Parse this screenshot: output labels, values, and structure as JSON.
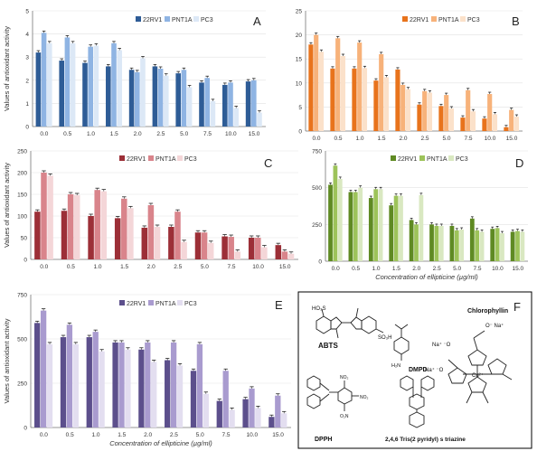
{
  "common": {
    "series_names": [
      "22RV1",
      "PNT1A",
      "PC3"
    ],
    "categories": [
      "0.0",
      "0.5",
      "1.0",
      "1.5",
      "2.0",
      "2.5",
      "5.0",
      "7.5",
      "10.0",
      "15.0"
    ]
  },
  "panel_f": {
    "letter": "F",
    "labels": {
      "abts": "ABTS",
      "chlorophyllin": "Chlorophyllin",
      "dmpd": "DMPD",
      "dpph": "DPPH",
      "tptz": "2,4,6 Tris(2 pyridyl) s triazine",
      "na1": "O⁻ Na⁺",
      "na2": "Na⁺ ⁻O",
      "na3": "Na⁺ ⁻O",
      "cu": "Cu²⁺"
    }
  },
  "chart_data": [
    {
      "id": "A",
      "type": "bar",
      "letter": "A",
      "ylabel": "Values of antioxidant activity",
      "xlabel": "",
      "ylim": [
        0,
        5
      ],
      "yticks": [
        0,
        1,
        2,
        3,
        4,
        5
      ],
      "categories": [
        "0.0",
        "0.5",
        "1.0",
        "1.5",
        "2.0",
        "2.5",
        "5.0",
        "7.5",
        "10.0",
        "15.0"
      ],
      "colors": [
        "#2e5c96",
        "#8fb4e3",
        "#dce8f6"
      ],
      "series": [
        {
          "name": "22RV1",
          "values": [
            3.2,
            2.85,
            2.75,
            2.6,
            2.45,
            2.6,
            2.3,
            1.9,
            1.8,
            1.95
          ]
        },
        {
          "name": "PNT1A",
          "values": [
            4.05,
            3.85,
            3.45,
            3.6,
            2.35,
            2.5,
            2.45,
            2.1,
            1.9,
            2.0
          ]
        },
        {
          "name": "PC3",
          "values": [
            3.6,
            3.6,
            3.5,
            3.3,
            2.95,
            2.2,
            1.7,
            1.1,
            0.8,
            0.6
          ]
        }
      ]
    },
    {
      "id": "B",
      "type": "bar",
      "letter": "B",
      "ylabel": "",
      "xlabel": "",
      "ylim": [
        0,
        25
      ],
      "yticks": [
        0,
        5,
        10,
        15,
        20,
        25
      ],
      "categories": [
        "0.0",
        "0.5",
        "1.0",
        "1.5",
        "2.0",
        "2.5",
        "5.0",
        "7.5",
        "10.0",
        "15.0"
      ],
      "colors": [
        "#e8731c",
        "#f7b27a",
        "#fbe1ca"
      ],
      "series": [
        {
          "name": "22RV1",
          "values": [
            18.0,
            13.0,
            13.0,
            10.5,
            12.8,
            5.5,
            5.2,
            2.8,
            2.6,
            0.8
          ]
        },
        {
          "name": "PNT1A",
          "values": [
            20.0,
            19.3,
            18.4,
            16.0,
            9.6,
            8.3,
            7.5,
            8.5,
            7.7,
            4.4
          ]
        },
        {
          "name": "PC3",
          "values": [
            16.5,
            15.6,
            13.1,
            11.2,
            8.7,
            8.0,
            4.7,
            4.1,
            3.5,
            3.0
          ]
        }
      ]
    },
    {
      "id": "C",
      "type": "bar",
      "letter": "C",
      "ylabel": "Values of antioxidant activity",
      "xlabel": "",
      "ylim": [
        0,
        250
      ],
      "yticks": [
        0,
        50,
        100,
        150,
        200,
        250
      ],
      "categories": [
        "0.0",
        "0.5",
        "1.0",
        "1.5",
        "2.0",
        "2.5",
        "5.0",
        "7.5",
        "10.0",
        "15.0"
      ],
      "colors": [
        "#9c2f37",
        "#d9848b",
        "#f4d6d8"
      ],
      "series": [
        {
          "name": "22RV1",
          "values": [
            110,
            112,
            100,
            95,
            73,
            75,
            62,
            53,
            50,
            33
          ]
        },
        {
          "name": "PNT1A",
          "values": [
            200,
            150,
            160,
            140,
            125,
            110,
            62,
            52,
            50,
            18
          ]
        },
        {
          "name": "PC3",
          "values": [
            193,
            148,
            157,
            118,
            75,
            40,
            38,
            18,
            28,
            13
          ]
        }
      ]
    },
    {
      "id": "D",
      "type": "bar",
      "letter": "D",
      "ylabel": "",
      "xlabel": "Concentration of ellipticine (µg/ml)",
      "ylim": [
        0,
        750
      ],
      "yticks": [
        0,
        250,
        500,
        750
      ],
      "categories": [
        "0.0",
        "0.5",
        "1.0",
        "1.5",
        "2.0",
        "2.5",
        "5.0",
        "7.5",
        "10.0",
        "15.0"
      ],
      "colors": [
        "#5f8a23",
        "#9dc35a",
        "#d9e8c1"
      ],
      "series": [
        {
          "name": "22RV1",
          "values": [
            520,
            470,
            430,
            380,
            280,
            250,
            240,
            290,
            220,
            200
          ]
        },
        {
          "name": "PNT1A",
          "values": [
            650,
            470,
            490,
            445,
            250,
            240,
            210,
            210,
            225,
            205
          ]
        },
        {
          "name": "PC3",
          "values": [
            560,
            500,
            490,
            445,
            450,
            240,
            215,
            200,
            190,
            200
          ]
        }
      ]
    },
    {
      "id": "E",
      "type": "bar",
      "letter": "E",
      "ylabel": "Values of antioxidant activity",
      "xlabel": "Concentration of ellipticine (µg/ml)",
      "ylim": [
        0,
        750
      ],
      "yticks": [
        0,
        250,
        500,
        750
      ],
      "categories": [
        "0.0",
        "0.5",
        "1.0",
        "1.5",
        "2.0",
        "2.5",
        "5.0",
        "7.5",
        "10.0",
        "15.0"
      ],
      "colors": [
        "#5c4f8c",
        "#a99bcf",
        "#e3def0"
      ],
      "series": [
        {
          "name": "22RV1",
          "values": [
            590,
            510,
            510,
            480,
            440,
            380,
            320,
            150,
            160,
            60
          ]
        },
        {
          "name": "PNT1A",
          "values": [
            660,
            580,
            540,
            480,
            480,
            480,
            470,
            320,
            220,
            180
          ]
        },
        {
          "name": "PC3",
          "values": [
            470,
            470,
            430,
            440,
            370,
            350,
            190,
            100,
            110,
            80
          ]
        }
      ]
    }
  ]
}
